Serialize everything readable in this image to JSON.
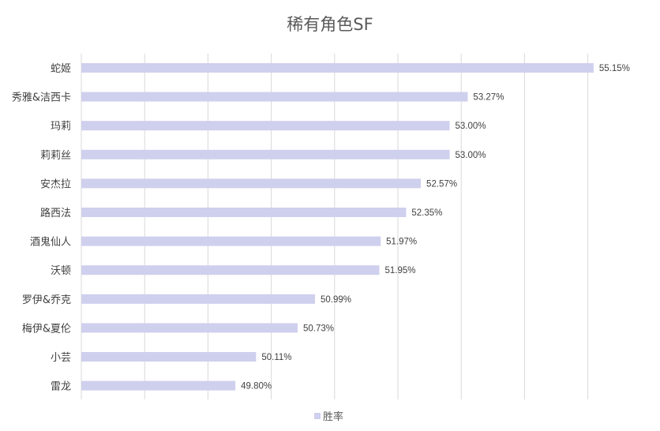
{
  "chart_data": {
    "type": "bar",
    "orientation": "horizontal",
    "title": "稀有角色SF",
    "categories": [
      "蛇姬",
      "秀雅&洁西卡",
      "玛莉",
      "莉莉丝",
      "安杰拉",
      "路西法",
      "酒鬼仙人",
      "沃顿",
      "罗伊&乔克",
      "梅伊&夏伦",
      "小芸",
      "雷龙"
    ],
    "series": [
      {
        "name": "胜率",
        "values": [
          55.15,
          53.27,
          53.0,
          53.0,
          52.57,
          52.35,
          51.97,
          51.95,
          50.99,
          50.73,
          50.11,
          49.8
        ],
        "labels": [
          "55.15%",
          "53.27%",
          "53.00%",
          "53.00%",
          "52.57%",
          "52.35%",
          "51.97%",
          "51.95%",
          "50.99%",
          "50.73%",
          "50.11%",
          "49.80%"
        ]
      }
    ],
    "xlim": [
      47.5,
      56.0
    ],
    "grid": true,
    "axis_tick_labels_visible": false,
    "legend_position": "bottom",
    "colors": {
      "bar": "#cfcfee",
      "grid": "#d9d9d9",
      "title": "#595959",
      "text": "#404040"
    }
  }
}
